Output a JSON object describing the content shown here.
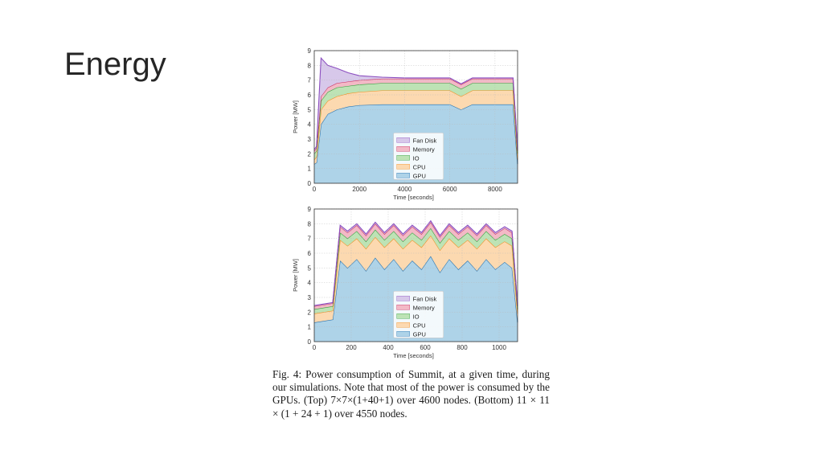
{
  "slide": {
    "title": "Energy"
  },
  "caption": {
    "text": "Fig. 4: Power consumption of Summit, at a given time, during our simulations. Note that most of the power is consumed by the GPUs. (Top) 7×7×(1+40+1) over 4600 nodes. (Bottom) 11 × 11 × (1 + 24 + 1) over 4550 nodes."
  },
  "colors": {
    "gpu": "#aed3e8",
    "gpu_line": "#1f6fb0",
    "cpu": "#fcd9b0",
    "cpu_line": "#f28c1e",
    "io": "#bde3b5",
    "io_line": "#2e9e3a",
    "memory": "#f3b9c6",
    "memory_line": "#c8245a",
    "fan": "#d7c8ea",
    "fan_line": "#8c4fc0"
  },
  "chart_data": [
    {
      "type": "area",
      "stacked": true,
      "xlabel": "Time [seconds]",
      "ylabel": "Power [MW]",
      "xlim": [
        0,
        9000
      ],
      "ylim": [
        0,
        9
      ],
      "xticks": [
        0,
        2000,
        4000,
        6000,
        8000
      ],
      "yticks": [
        0,
        1,
        2,
        3,
        4,
        5,
        6,
        7,
        8,
        9
      ],
      "grid": true,
      "legend": "center-right",
      "legend_entries": [
        "Fan Disk",
        "Memory",
        "IO",
        "CPU",
        "GPU"
      ],
      "x": [
        0,
        100,
        300,
        600,
        1000,
        1500,
        2000,
        3000,
        4000,
        5000,
        6000,
        6500,
        7000,
        8000,
        8800,
        9000
      ],
      "series": [
        {
          "name": "GPU",
          "values": [
            1.3,
            1.4,
            4.0,
            4.7,
            5.0,
            5.2,
            5.3,
            5.35,
            5.35,
            5.35,
            5.35,
            5.0,
            5.35,
            5.35,
            5.35,
            1.3
          ]
        },
        {
          "name": "CPU",
          "values": [
            0.3,
            0.4,
            1.0,
            0.9,
            0.9,
            0.9,
            0.9,
            0.95,
            0.95,
            0.95,
            0.95,
            0.9,
            0.95,
            0.95,
            0.95,
            0.3
          ]
        },
        {
          "name": "IO",
          "values": [
            0.4,
            0.4,
            0.6,
            0.6,
            0.6,
            0.5,
            0.5,
            0.5,
            0.5,
            0.5,
            0.5,
            0.5,
            0.5,
            0.5,
            0.5,
            0.4
          ]
        },
        {
          "name": "Memory",
          "values": [
            0.2,
            0.2,
            0.3,
            0.3,
            0.3,
            0.3,
            0.3,
            0.3,
            0.3,
            0.3,
            0.3,
            0.3,
            0.3,
            0.3,
            0.3,
            0.2
          ]
        },
        {
          "name": "Fan Disk",
          "values": [
            0.1,
            0.1,
            2.6,
            1.5,
            1.0,
            0.6,
            0.3,
            0.1,
            0.05,
            0.05,
            0.05,
            0.05,
            0.05,
            0.05,
            0.05,
            0.1
          ]
        }
      ]
    },
    {
      "type": "area",
      "stacked": true,
      "xlabel": "Time [seconds]",
      "ylabel": "Power [MW]",
      "xlim": [
        0,
        1100
      ],
      "ylim": [
        0,
        9
      ],
      "xticks": [
        0,
        200,
        400,
        600,
        800,
        1000
      ],
      "yticks": [
        0,
        1,
        2,
        3,
        4,
        5,
        6,
        7,
        8,
        9
      ],
      "grid": true,
      "legend": "center-right",
      "legend_entries": [
        "Fan Disk",
        "Memory",
        "IO",
        "CPU",
        "GPU"
      ],
      "x": [
        0,
        100,
        140,
        180,
        230,
        280,
        330,
        380,
        430,
        480,
        530,
        580,
        630,
        680,
        730,
        780,
        830,
        880,
        930,
        980,
        1030,
        1070,
        1100
      ],
      "series": [
        {
          "name": "GPU",
          "values": [
            1.3,
            1.5,
            5.5,
            5.0,
            5.6,
            4.8,
            5.7,
            4.9,
            5.6,
            4.8,
            5.5,
            4.9,
            5.8,
            4.7,
            5.6,
            4.9,
            5.5,
            4.8,
            5.6,
            4.9,
            5.4,
            5.0,
            1.3
          ]
        },
        {
          "name": "CPU",
          "values": [
            0.6,
            0.6,
            1.4,
            1.5,
            1.4,
            1.5,
            1.4,
            1.5,
            1.4,
            1.5,
            1.4,
            1.5,
            1.4,
            1.5,
            1.4,
            1.5,
            1.4,
            1.5,
            1.4,
            1.5,
            1.4,
            1.5,
            0.6
          ]
        },
        {
          "name": "IO",
          "values": [
            0.3,
            0.3,
            0.5,
            0.5,
            0.5,
            0.5,
            0.5,
            0.5,
            0.5,
            0.5,
            0.5,
            0.5,
            0.5,
            0.5,
            0.5,
            0.5,
            0.5,
            0.5,
            0.5,
            0.5,
            0.5,
            0.5,
            0.3
          ]
        },
        {
          "name": "Memory",
          "values": [
            0.2,
            0.2,
            0.4,
            0.4,
            0.4,
            0.4,
            0.4,
            0.4,
            0.4,
            0.4,
            0.4,
            0.4,
            0.4,
            0.4,
            0.4,
            0.4,
            0.4,
            0.4,
            0.4,
            0.4,
            0.4,
            0.4,
            0.2
          ]
        },
        {
          "name": "Fan Disk",
          "values": [
            0.05,
            0.05,
            0.1,
            0.1,
            0.1,
            0.1,
            0.1,
            0.1,
            0.1,
            0.1,
            0.1,
            0.1,
            0.1,
            0.1,
            0.1,
            0.1,
            0.1,
            0.1,
            0.1,
            0.1,
            0.1,
            0.1,
            0.05
          ]
        }
      ]
    }
  ]
}
